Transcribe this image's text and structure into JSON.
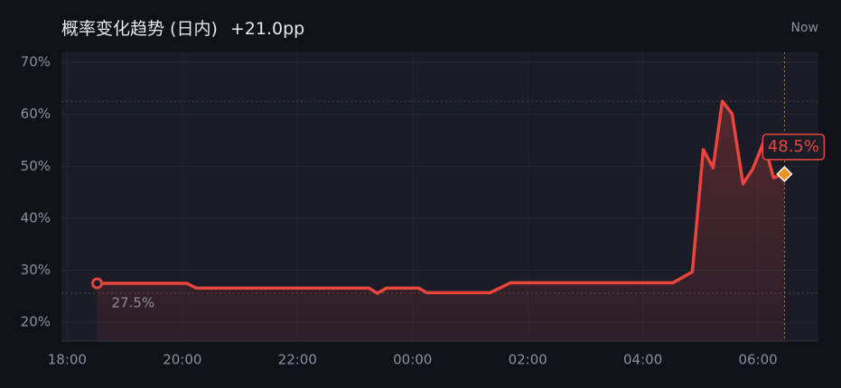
{
  "chart_data": {
    "type": "line",
    "title": "概率变化趋势 (日内)",
    "subtitle": "+21.0pp",
    "now_label": "Now",
    "x": [
      0.52,
      2.08,
      2.24,
      5.24,
      5.39,
      5.55,
      6.1,
      6.25,
      7.35,
      7.7,
      10.52,
      10.86,
      11.05,
      11.22,
      11.38,
      11.55,
      11.74,
      11.91,
      12.1,
      12.27,
      12.46
    ],
    "series": [
      {
        "color": "#e8453c",
        "values": [
          27.5,
          27.5,
          26.6,
          26.6,
          25.6,
          26.6,
          26.6,
          25.7,
          25.7,
          27.6,
          27.6,
          29.7,
          53.2,
          49.7,
          62.5,
          60.1,
          46.6,
          49.5,
          54.7,
          47.8,
          48.5
        ],
        "value_labels": [
          "27.5%",
          null,
          null,
          null,
          null,
          null,
          null,
          null,
          null,
          null,
          null,
          null,
          null,
          null,
          null,
          null,
          null,
          null,
          null,
          null,
          "48.5%"
        ]
      }
    ],
    "xlim": [
      -0.1,
      13.05
    ],
    "xticks": [
      {
        "value": 0,
        "label": "18:00"
      },
      {
        "value": 2,
        "label": "20:00"
      },
      {
        "value": 4,
        "label": "22:00"
      },
      {
        "value": 6,
        "label": "00:00"
      },
      {
        "value": 8,
        "label": "02:00"
      },
      {
        "value": 10,
        "label": "04:00"
      },
      {
        "value": 12,
        "label": "06:00"
      }
    ],
    "ylim": [
      16.4,
      71.9
    ],
    "yticks": [
      {
        "value": 20,
        "label": "20%"
      },
      {
        "value": 30,
        "label": "30%"
      },
      {
        "value": 40,
        "label": "40%"
      },
      {
        "value": 50,
        "label": "50%"
      },
      {
        "value": 60,
        "label": "60%"
      },
      {
        "value": 70,
        "label": "70%"
      }
    ],
    "grid": true,
    "end_marker_color": "#f0901e"
  }
}
